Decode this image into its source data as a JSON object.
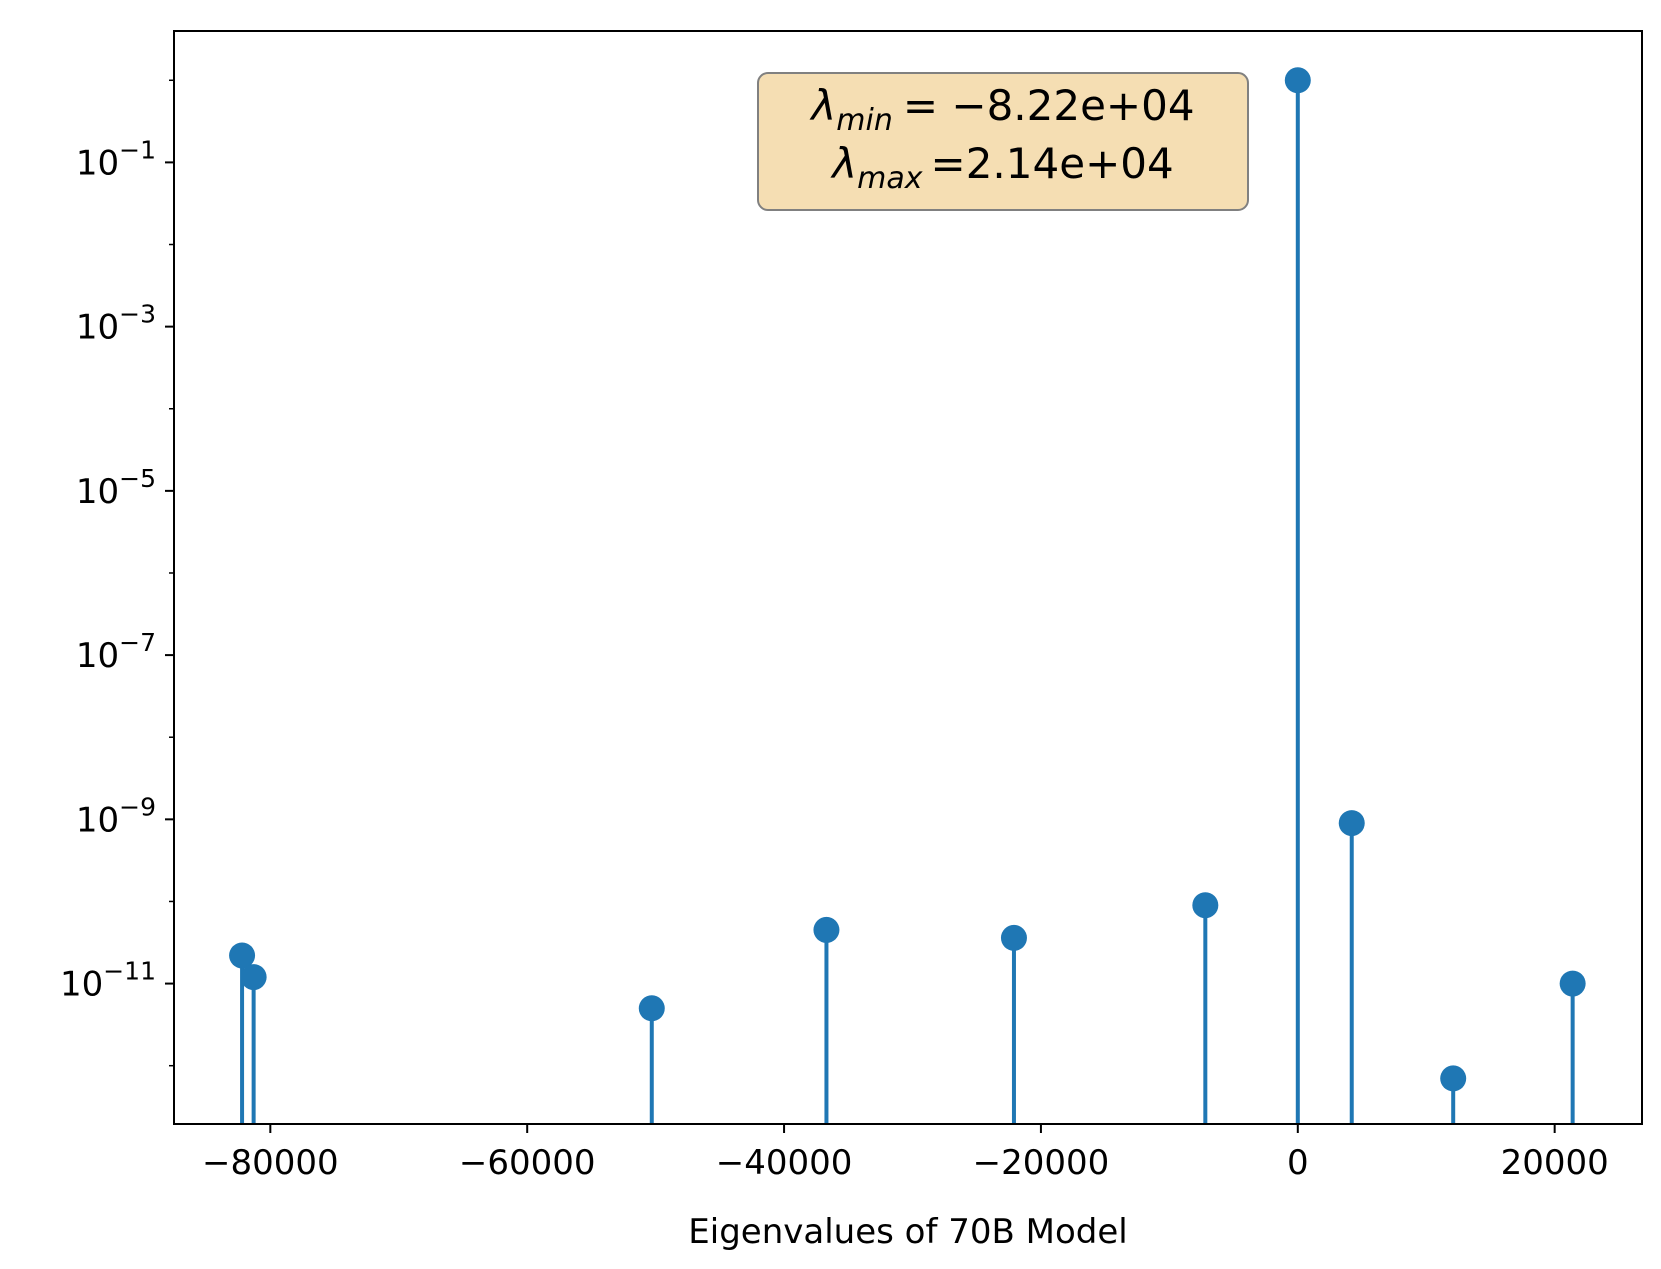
{
  "chart_data": {
    "type": "stem",
    "xlabel": "Eigenvalues of 70B Model",
    "ylabel": "",
    "yscale": "log",
    "xlim": [
      -87500,
      26800
    ],
    "ylim_log10": [
      -12.71,
      0.6
    ],
    "x_ticks": [
      -80000,
      -60000,
      -40000,
      -20000,
      0,
      20000
    ],
    "x_tick_labels": [
      "−80000",
      "−60000",
      "−40000",
      "−20000",
      "0",
      "20000"
    ],
    "y_ticks_log10": [
      -1,
      -3,
      -5,
      -7,
      -9,
      -11
    ],
    "y_tick_labels": [
      {
        "base": "10",
        "exp": "−1"
      },
      {
        "base": "10",
        "exp": "−3"
      },
      {
        "base": "10",
        "exp": "−5"
      },
      {
        "base": "10",
        "exp": "−7"
      },
      {
        "base": "10",
        "exp": "−9"
      },
      {
        "base": "10",
        "exp": "−11"
      }
    ],
    "series": [
      {
        "color": "#1f77b4",
        "points": [
          {
            "x": -82200,
            "y": 2.2e-11
          },
          {
            "x": -81300,
            "y": 1.2e-11
          },
          {
            "x": -50300,
            "y": 5e-12
          },
          {
            "x": -36700,
            "y": 4.5e-11
          },
          {
            "x": -22100,
            "y": 3.6e-11
          },
          {
            "x": -7200,
            "y": 9e-11
          },
          {
            "x": 0,
            "y": 1.0
          },
          {
            "x": 4200,
            "y": 9e-10
          },
          {
            "x": 12100,
            "y": 7e-13
          },
          {
            "x": 21400,
            "y": 1e-11
          }
        ]
      }
    ],
    "annotation": {
      "line1": {
        "symbol": "λ",
        "sub": "min",
        "text": "= −8.22e+04"
      },
      "line2": {
        "symbol": "λ",
        "sub": "max",
        "text": "=2.14e+04"
      },
      "box_fill": "#f5deb3",
      "box_edge": "#808080"
    },
    "grid": false
  }
}
